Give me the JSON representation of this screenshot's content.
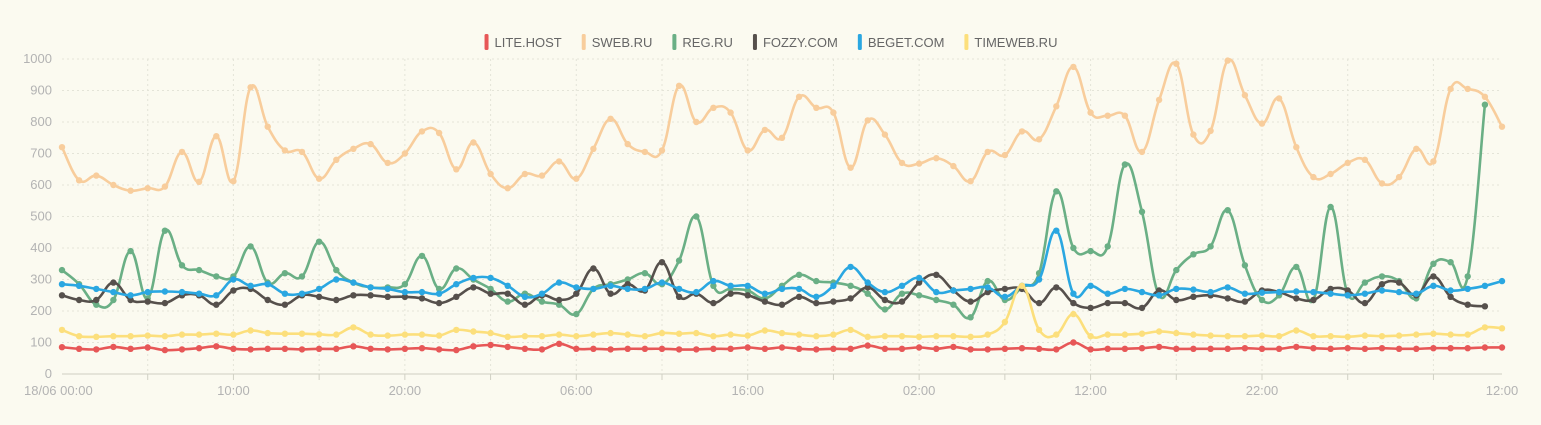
{
  "chart_data": {
    "type": "line",
    "ylim": [
      0,
      1000
    ],
    "y_ticks": [
      0,
      100,
      200,
      300,
      400,
      500,
      600,
      700,
      800,
      900,
      1000
    ],
    "x_ticks": [
      "18/06 00:00",
      "10:00",
      "20:00",
      "06:00",
      "16:00",
      "02:00",
      "12:00",
      "22:00",
      "12:00"
    ],
    "x_tick_positions": [
      0,
      10,
      20,
      30,
      40,
      50,
      60,
      70,
      84
    ],
    "x_range": [
      0,
      84
    ],
    "grid": true,
    "legend_position": "top-center",
    "series": [
      {
        "name": "LITE.HOST",
        "color": "#e75757",
        "values": [
          85,
          80,
          78,
          86,
          80,
          84,
          76,
          78,
          82,
          88,
          80,
          78,
          80,
          80,
          78,
          80,
          80,
          88,
          80,
          78,
          80,
          82,
          78,
          76,
          88,
          92,
          86,
          80,
          78,
          96,
          80,
          80,
          78,
          80,
          80,
          80,
          78,
          78,
          80,
          80,
          84,
          80,
          84,
          80,
          78,
          80,
          80,
          90,
          80,
          80,
          84,
          80,
          86,
          78,
          78,
          80,
          82,
          80,
          78,
          100,
          78,
          80,
          80,
          82,
          86,
          80,
          80,
          80,
          80,
          82,
          80,
          80,
          86,
          82,
          80,
          82,
          80,
          82,
          80,
          80,
          82,
          82,
          82,
          84,
          84
        ]
      },
      {
        "name": "SWEB.RU",
        "color": "#f8cd9c",
        "values": [
          720,
          615,
          630,
          600,
          582,
          590,
          595,
          705,
          610,
          755,
          612,
          910,
          785,
          710,
          705,
          620,
          680,
          715,
          730,
          670,
          700,
          770,
          765,
          650,
          735,
          635,
          590,
          635,
          630,
          675,
          620,
          715,
          810,
          730,
          705,
          710,
          915,
          800,
          845,
          830,
          710,
          775,
          750,
          880,
          845,
          830,
          655,
          805,
          760,
          670,
          668,
          685,
          660,
          612,
          705,
          695,
          770,
          745,
          850,
          975,
          830,
          820,
          820,
          705,
          870,
          985,
          760,
          772,
          995,
          885,
          795,
          875,
          720,
          625,
          635,
          670,
          680,
          605,
          625,
          715,
          675,
          905,
          905,
          880,
          785
        ]
      },
      {
        "name": "REG.RU",
        "color": "#6aaf85",
        "values": [
          330,
          285,
          220,
          235,
          390,
          240,
          455,
          345,
          330,
          310,
          310,
          405,
          290,
          320,
          310,
          420,
          330,
          290,
          275,
          275,
          285,
          375,
          270,
          335,
          300,
          270,
          230,
          255,
          230,
          220,
          190,
          270,
          285,
          300,
          320,
          285,
          360,
          500,
          280,
          270,
          265,
          240,
          280,
          315,
          295,
          290,
          280,
          255,
          205,
          255,
          250,
          235,
          220,
          180,
          295,
          235,
          275,
          320,
          580,
          400,
          390,
          405,
          665,
          515,
          250,
          330,
          380,
          405,
          520,
          345,
          235,
          250,
          340,
          235,
          530,
          255,
          290,
          310,
          295,
          240,
          350,
          355,
          310,
          855
        ]
      },
      {
        "name": "FOZZY.COM",
        "color": "#56504c",
        "values": [
          250,
          235,
          235,
          290,
          235,
          230,
          225,
          250,
          250,
          220,
          265,
          270,
          235,
          220,
          250,
          245,
          235,
          250,
          250,
          245,
          245,
          240,
          225,
          245,
          275,
          255,
          255,
          220,
          250,
          235,
          255,
          335,
          255,
          285,
          265,
          355,
          245,
          255,
          225,
          255,
          250,
          230,
          220,
          245,
          225,
          230,
          240,
          275,
          235,
          230,
          290,
          315,
          265,
          230,
          260,
          270,
          270,
          225,
          275,
          225,
          210,
          225,
          225,
          210,
          265,
          235,
          245,
          250,
          240,
          230,
          265,
          260,
          240,
          235,
          270,
          265,
          225,
          285,
          290,
          250,
          310,
          245,
          220,
          215
        ]
      },
      {
        "name": "BEGET.COM",
        "color": "#2aa7e1",
        "values": [
          285,
          280,
          270,
          260,
          250,
          260,
          262,
          260,
          255,
          250,
          300,
          280,
          285,
          255,
          255,
          270,
          300,
          290,
          275,
          270,
          260,
          260,
          255,
          285,
          305,
          305,
          280,
          245,
          255,
          290,
          275,
          270,
          280,
          270,
          270,
          290,
          270,
          260,
          295,
          280,
          280,
          255,
          270,
          270,
          245,
          280,
          340,
          290,
          260,
          280,
          305,
          260,
          265,
          270,
          275,
          245,
          280,
          300,
          455,
          255,
          280,
          255,
          270,
          260,
          250,
          270,
          268,
          260,
          275,
          255,
          258,
          260,
          262,
          260,
          255,
          250,
          255,
          265,
          260,
          255,
          280,
          265,
          270,
          280,
          295
        ]
      },
      {
        "name": "TIMEWEB.RU",
        "color": "#fcdf7c",
        "values": [
          140,
          120,
          118,
          120,
          120,
          122,
          120,
          125,
          125,
          128,
          125,
          138,
          130,
          128,
          128,
          126,
          125,
          148,
          125,
          122,
          125,
          125,
          122,
          140,
          135,
          130,
          118,
          120,
          120,
          125,
          120,
          125,
          130,
          125,
          120,
          130,
          128,
          130,
          120,
          125,
          122,
          138,
          130,
          125,
          120,
          125,
          140,
          118,
          120,
          120,
          118,
          120,
          120,
          118,
          125,
          165,
          280,
          140,
          125,
          190,
          120,
          125,
          125,
          128,
          135,
          130,
          125,
          122,
          120,
          120,
          122,
          120,
          138,
          120,
          120,
          118,
          122,
          120,
          122,
          125,
          128,
          125,
          125,
          148,
          145
        ]
      }
    ]
  }
}
